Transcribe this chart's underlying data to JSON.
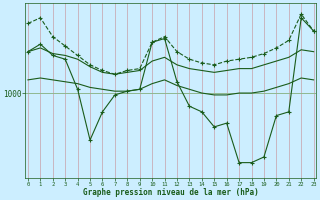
{
  "xlabel": "Graphe pression niveau de la mer (hPa)",
  "background_color": "#cceeff",
  "grid_color_v": "#c8a0a8",
  "grid_color_h": "#90b890",
  "line_color": "#1a5c1a",
  "xmin": 0,
  "xmax": 23,
  "ymin": 955,
  "ymax": 1048,
  "series": [
    {
      "x": [
        0,
        1,
        2,
        3,
        4,
        5,
        6,
        7,
        8,
        9,
        10,
        11,
        12,
        13,
        14,
        15,
        16,
        17,
        18,
        19,
        20,
        21,
        22,
        23
      ],
      "y": [
        1037,
        1040,
        1030,
        1025,
        1020,
        1015,
        1012,
        1010,
        1012,
        1013,
        1027,
        1030,
        1022,
        1018,
        1016,
        1015,
        1017,
        1018,
        1019,
        1021,
        1024,
        1028,
        1042,
        1033
      ],
      "style": "--",
      "marker": "+"
    },
    {
      "x": [
        0,
        1,
        2,
        3,
        4,
        5,
        6,
        7,
        8,
        9,
        10,
        11,
        12,
        13,
        14,
        15,
        16,
        17,
        18,
        19,
        20,
        21,
        22,
        23
      ],
      "y": [
        1022,
        1024,
        1021,
        1020,
        1018,
        1014,
        1011,
        1010,
        1011,
        1012,
        1017,
        1019,
        1015,
        1013,
        1012,
        1011,
        1012,
        1013,
        1013,
        1015,
        1017,
        1019,
        1023,
        1022
      ],
      "style": "-",
      "marker": null
    },
    {
      "x": [
        0,
        1,
        2,
        3,
        4,
        5,
        6,
        7,
        8,
        9,
        10,
        11,
        12,
        13,
        14,
        15,
        16,
        17,
        18,
        19,
        20,
        21,
        22,
        23
      ],
      "y": [
        1022,
        1026,
        1020,
        1018,
        1002,
        975,
        990,
        999,
        1001,
        1002,
        1027,
        1029,
        1006,
        993,
        990,
        982,
        984,
        963,
        963,
        966,
        988,
        990,
        1040,
        1033
      ],
      "style": "-",
      "marker": "+"
    },
    {
      "x": [
        0,
        1,
        2,
        3,
        4,
        5,
        6,
        7,
        8,
        9,
        10,
        11,
        12,
        13,
        14,
        15,
        16,
        17,
        18,
        19,
        20,
        21,
        22,
        23
      ],
      "y": [
        1007,
        1008,
        1007,
        1006,
        1005,
        1003,
        1002,
        1001,
        1001,
        1002,
        1005,
        1007,
        1004,
        1002,
        1000,
        999,
        999,
        1000,
        1000,
        1001,
        1003,
        1005,
        1008,
        1007
      ],
      "style": "-",
      "marker": null
    }
  ]
}
